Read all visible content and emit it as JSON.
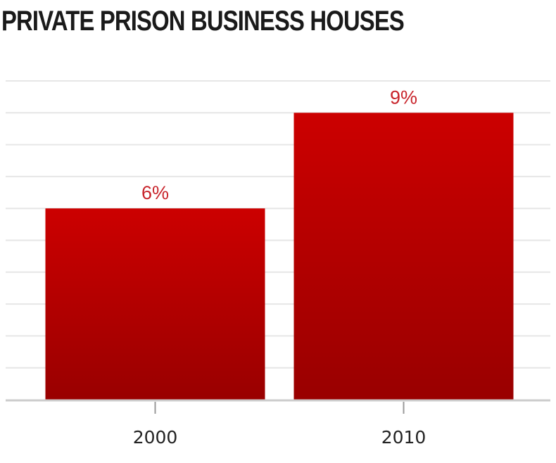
{
  "chart_data": {
    "type": "bar",
    "title": "PRIVATE PRISON BUSINESS HOUSES",
    "categories": [
      "2000",
      "2010"
    ],
    "values": [
      6,
      9
    ],
    "value_labels": [
      "6%",
      "9%"
    ],
    "ylim": [
      0,
      10
    ],
    "grid": true,
    "colors": {
      "bar_top": "#cc0000",
      "bar_bottom": "#990000",
      "label": "#c8242b",
      "gridline": "#e6e6e6",
      "axis": "#cccccc"
    }
  }
}
